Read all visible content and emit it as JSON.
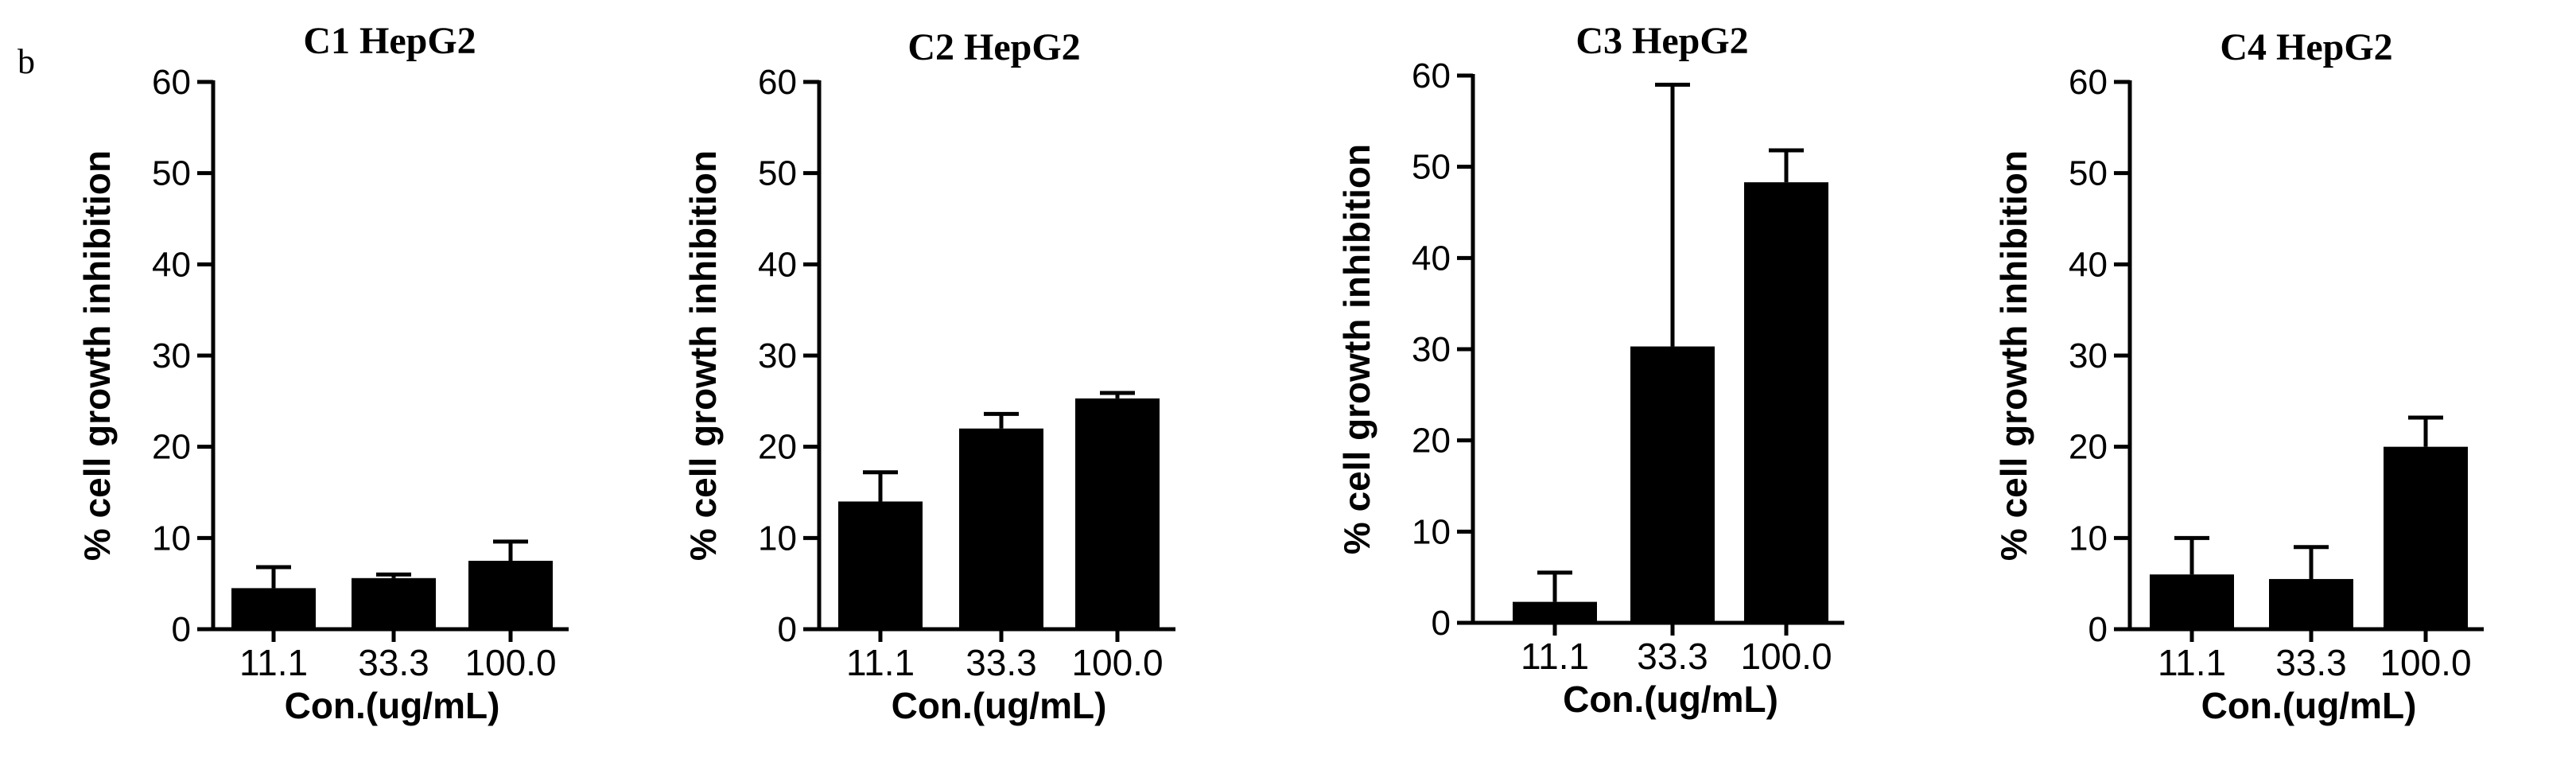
{
  "figure": {
    "panel_letter": "b"
  },
  "chart_data": [
    {
      "type": "bar",
      "title": "C1 HepG2",
      "xlabel": "Con.(ug/mL)",
      "ylabel": "% cell growth inhibition",
      "categories": [
        "11.1",
        "33.3",
        "100.0"
      ],
      "values": [
        4.5,
        5.6,
        7.5
      ],
      "errors": [
        2.3,
        0.4,
        2.1
      ],
      "ylim": [
        0,
        60
      ],
      "yticks": [
        0,
        10,
        20,
        30,
        40,
        50,
        60
      ],
      "bar_color": "#000000"
    },
    {
      "type": "bar",
      "title": "C2 HepG2",
      "xlabel": "Con.(ug/mL)",
      "ylabel": "% cell growth inhibition",
      "categories": [
        "11.1",
        "33.3",
        "100.0"
      ],
      "values": [
        14.0,
        22.0,
        25.3
      ],
      "errors": [
        3.2,
        1.6,
        0.6
      ],
      "ylim": [
        0,
        60
      ],
      "yticks": [
        0,
        10,
        20,
        30,
        40,
        50,
        60
      ],
      "bar_color": "#000000"
    },
    {
      "type": "bar",
      "title": "C3 HepG2",
      "xlabel": "Con.(ug/mL)",
      "ylabel": "% cell growth inhibition",
      "categories": [
        "11.1",
        "33.3",
        "100.0"
      ],
      "values": [
        2.3,
        30.3,
        48.3
      ],
      "errors": [
        3.2,
        28.7,
        3.5
      ],
      "ylim": [
        0,
        60
      ],
      "yticks": [
        0,
        10,
        20,
        30,
        40,
        50,
        60
      ],
      "bar_color": "#000000"
    },
    {
      "type": "bar",
      "title": "C4 HepG2",
      "xlabel": "Con.(ug/mL)",
      "ylabel": "% cell growth inhibition",
      "categories": [
        "11.1",
        "33.3",
        "100.0"
      ],
      "values": [
        6.0,
        5.5,
        20.0
      ],
      "errors": [
        4.0,
        3.5,
        3.2
      ],
      "ylim": [
        0,
        60
      ],
      "yticks": [
        0,
        10,
        20,
        30,
        40,
        50,
        60
      ],
      "bar_color": "#000000"
    }
  ]
}
